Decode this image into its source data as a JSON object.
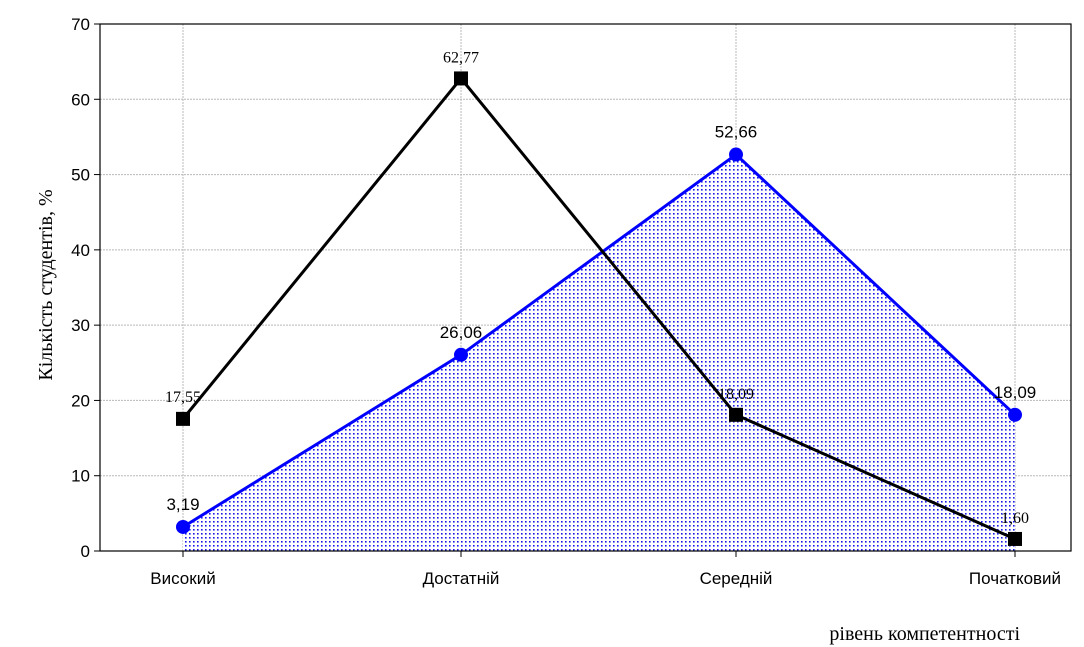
{
  "chart_data": {
    "type": "line",
    "title": "",
    "xlabel": "рівень компетентності",
    "ylabel": "Кількість студентів, %",
    "categories": [
      "Високий",
      "Достатній",
      "Середній",
      "Початковий"
    ],
    "ylim": [
      0,
      70
    ],
    "yticks": [
      "0",
      "10",
      "20",
      "30",
      "40",
      "50",
      "60",
      "70"
    ],
    "grid": true,
    "legend": "none",
    "series": [
      {
        "values": [
          17.55,
          62.77,
          18.09,
          1.6
        ],
        "labels": [
          "17,55",
          "62,77",
          "18,09",
          "1,60"
        ],
        "color": "#000000",
        "marker": "square",
        "fill": false
      },
      {
        "values": [
          3.19,
          26.06,
          52.66,
          18.09
        ],
        "labels": [
          "3,19",
          "26,06",
          "52,66",
          "18,09"
        ],
        "color": "#0000ff",
        "marker": "circle",
        "fill": true
      }
    ]
  }
}
